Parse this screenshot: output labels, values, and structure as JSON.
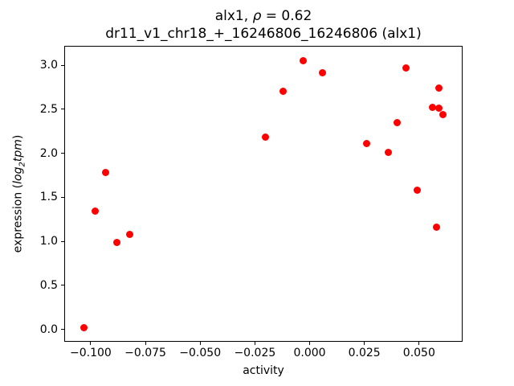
{
  "title": {
    "prefix": "alx1, ",
    "rho": "ρ",
    "suffix": " = 0.62"
  },
  "ylabel": {
    "prefix": "expression (",
    "log": "log",
    "sub": "2",
    "tpm": "tpm",
    "suffix": ")"
  },
  "chart_data": {
    "type": "scatter",
    "title": "alx1, ρ = 0.62",
    "subtitle": "dr11_v1_chr18_+_16246806_16246806 (alx1)",
    "correlation_rho": 0.62,
    "xlabel": "activity",
    "ylabel": "expression (log2tpm)",
    "marker_color": "#ff0000",
    "marker_size_px": 9,
    "grid": false,
    "legend": "none",
    "xlim": [
      -0.1117,
      0.0695
    ],
    "ylim": [
      -0.131,
      3.211
    ],
    "x_ticks": [
      {
        "value": -0.1,
        "label": "−0.100"
      },
      {
        "value": -0.075,
        "label": "−0.075"
      },
      {
        "value": -0.05,
        "label": "−0.050"
      },
      {
        "value": -0.025,
        "label": "−0.025"
      },
      {
        "value": 0.0,
        "label": "0.000"
      },
      {
        "value": 0.025,
        "label": "0.025"
      },
      {
        "value": 0.05,
        "label": "0.050"
      }
    ],
    "y_ticks": [
      {
        "value": 0.0,
        "label": "0.0"
      },
      {
        "value": 0.5,
        "label": "0.5"
      },
      {
        "value": 1.0,
        "label": "1.0"
      },
      {
        "value": 1.5,
        "label": "1.5"
      },
      {
        "value": 2.0,
        "label": "2.0"
      },
      {
        "value": 2.5,
        "label": "2.5"
      },
      {
        "value": 3.0,
        "label": "3.0"
      }
    ],
    "series": [
      {
        "name": "alx1",
        "points": [
          [
            -0.103,
            0.02
          ],
          [
            -0.098,
            1.34
          ],
          [
            -0.093,
            1.78
          ],
          [
            -0.088,
            0.99
          ],
          [
            -0.082,
            1.08
          ],
          [
            -0.02,
            2.18
          ],
          [
            -0.012,
            2.7
          ],
          [
            -0.003,
            3.05
          ],
          [
            0.006,
            2.91
          ],
          [
            0.026,
            2.11
          ],
          [
            0.036,
            2.01
          ],
          [
            0.04,
            2.35
          ],
          [
            0.044,
            2.97
          ],
          [
            0.049,
            1.58
          ],
          [
            0.056,
            2.52
          ],
          [
            0.059,
            2.51
          ],
          [
            0.059,
            2.74
          ],
          [
            0.058,
            1.16
          ],
          [
            0.061,
            2.44
          ]
        ]
      }
    ]
  }
}
